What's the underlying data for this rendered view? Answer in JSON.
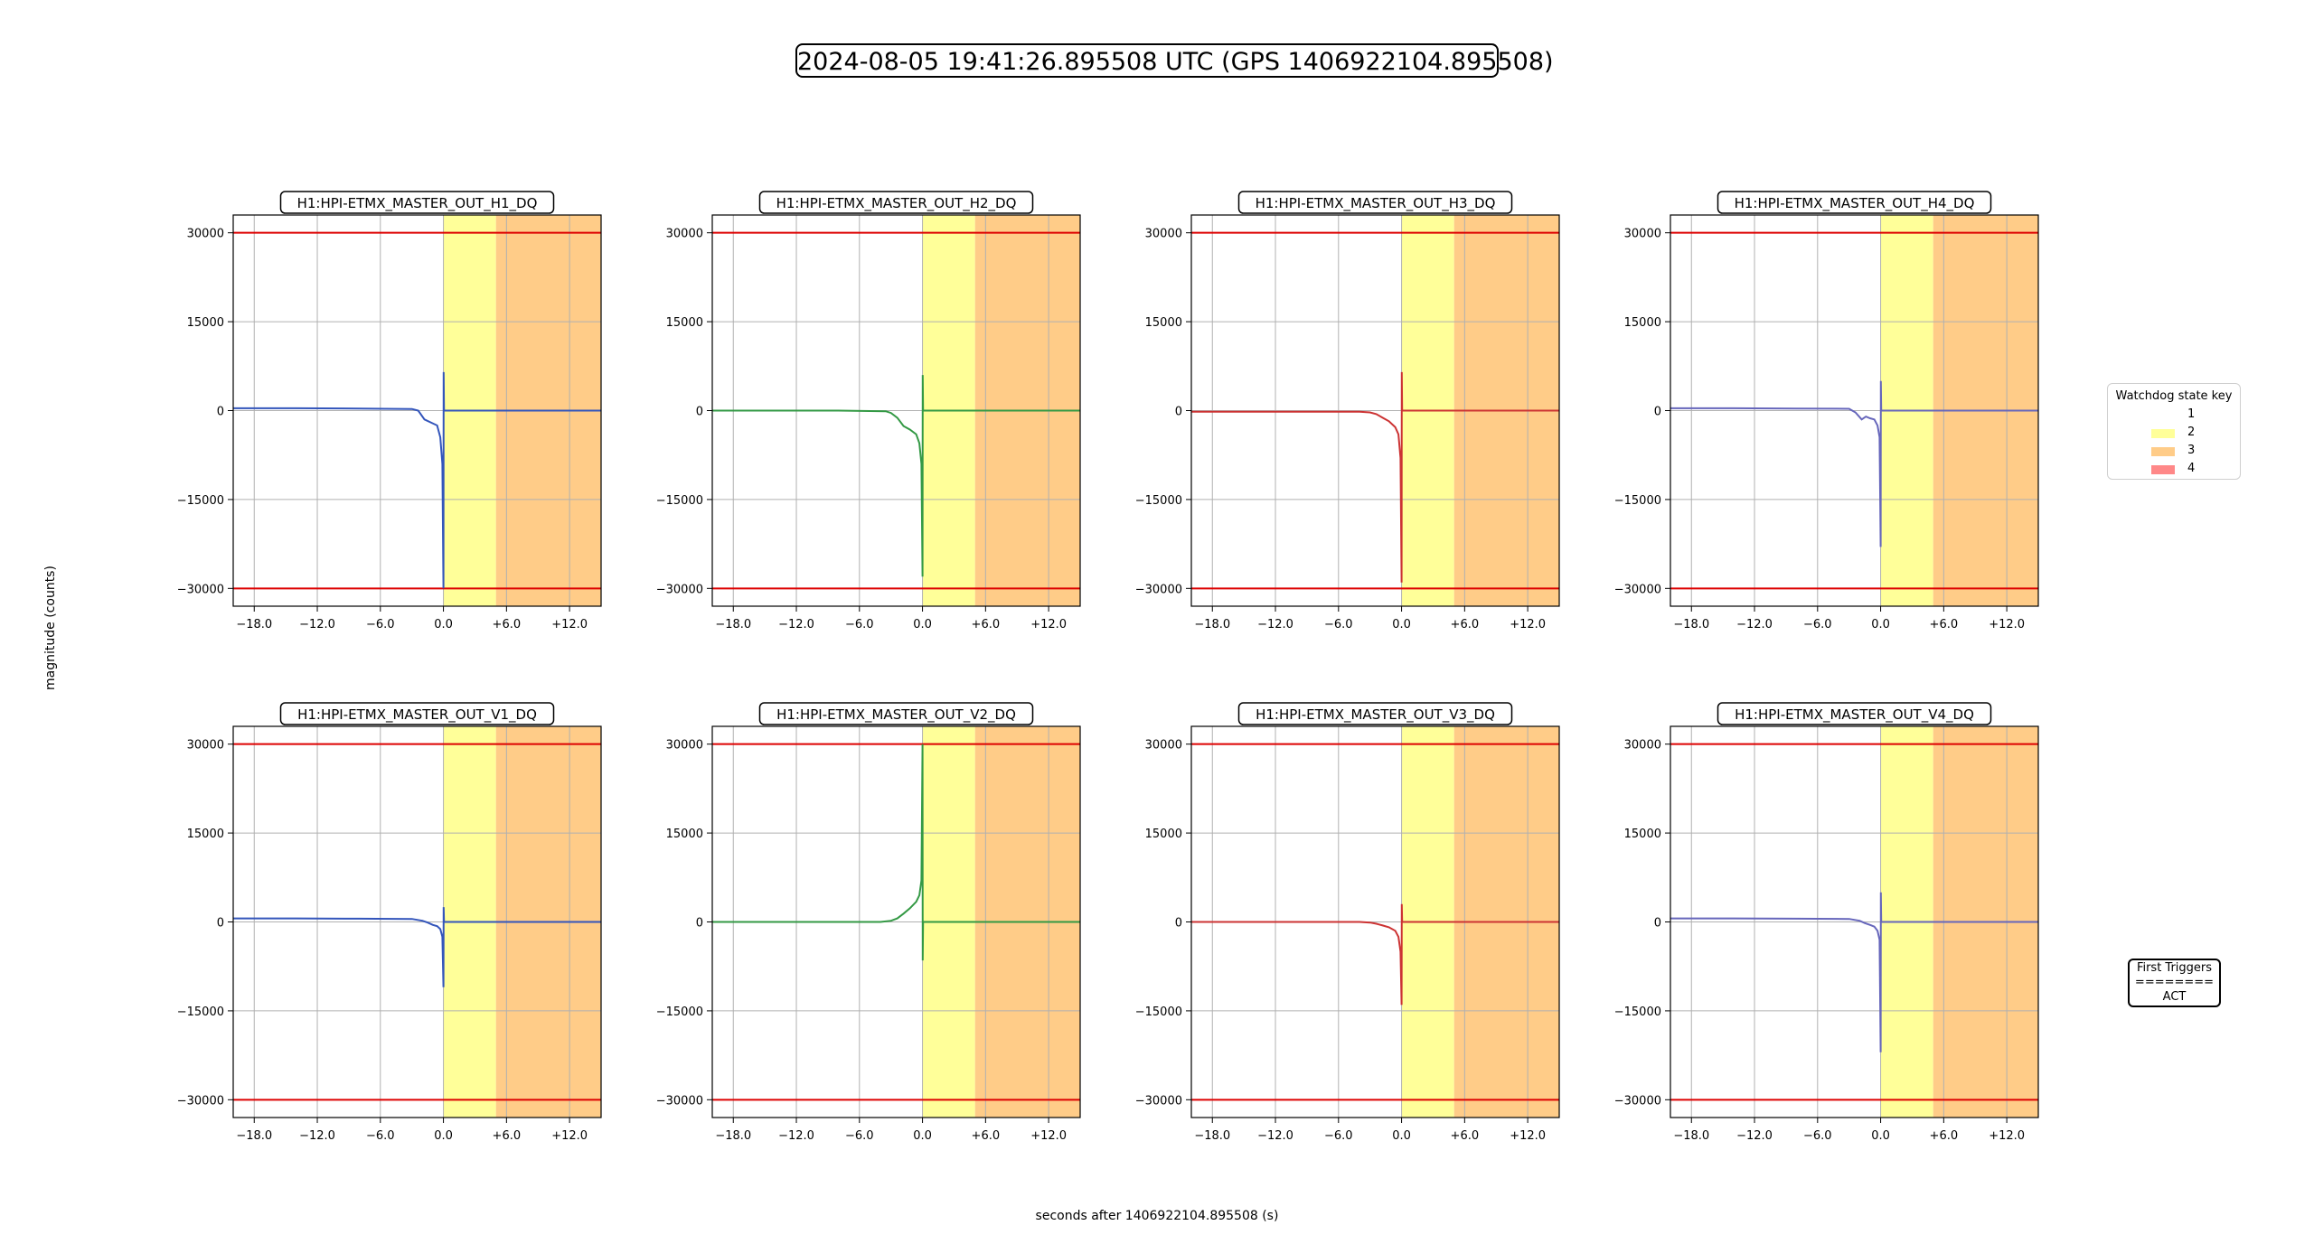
{
  "title": "2024-08-05 19:41:26.895508 UTC (GPS 1406922104.895508)",
  "ylabel": "magnitude (counts)",
  "xlabel": "seconds after 1406922104.895508 (s)",
  "legend": {
    "title": "Watchdog state key",
    "items": [
      {
        "label": "1",
        "color": "#ffffff"
      },
      {
        "label": "2",
        "color": "#ffff99"
      },
      {
        "label": "3",
        "color": "#ffcc88"
      },
      {
        "label": "4",
        "color": "#ff8888"
      }
    ]
  },
  "first_triggers": {
    "title": "First Triggers",
    "separator": "========",
    "value": "ACT"
  },
  "chart_data": [
    {
      "type": "line",
      "title": "H1:HPI-ETMX_MASTER_OUT_H1_DQ",
      "color": "#3355bb",
      "x": [
        -20,
        -14,
        -8,
        -3,
        -2.4,
        -1.8,
        -1.2,
        -0.6,
        -0.3,
        -0.1,
        0,
        0.02,
        0.05,
        0.2,
        5,
        15
      ],
      "y": [
        400,
        400,
        350,
        280,
        0,
        -1500,
        -2000,
        -2500,
        -4500,
        -9000,
        -30000,
        6500,
        0,
        0,
        0,
        0
      ]
    },
    {
      "type": "line",
      "title": "H1:HPI-ETMX_MASTER_OUT_H2_DQ",
      "color": "#339944",
      "x": [
        -20,
        -14,
        -8,
        -3.5,
        -3,
        -2.4,
        -1.8,
        -1.2,
        -0.6,
        -0.3,
        -0.1,
        0,
        0.02,
        0.05,
        0.2,
        5,
        15
      ],
      "y": [
        0,
        0,
        0,
        -100,
        -400,
        -1200,
        -2600,
        -3200,
        -4000,
        -5500,
        -9000,
        -28000,
        6000,
        0,
        0,
        0,
        0
      ]
    },
    {
      "type": "line",
      "title": "H1:HPI-ETMX_MASTER_OUT_H3_DQ",
      "color": "#cc3333",
      "x": [
        -20,
        -14,
        -8,
        -4,
        -3,
        -2.4,
        -1.8,
        -1.2,
        -0.6,
        -0.3,
        -0.1,
        0,
        0.02,
        0.05,
        0.2,
        5,
        15
      ],
      "y": [
        -200,
        -200,
        -200,
        -200,
        -300,
        -600,
        -1200,
        -1800,
        -2800,
        -4000,
        -8000,
        -29000,
        6500,
        0,
        0,
        0,
        0
      ]
    },
    {
      "type": "line",
      "title": "H1:HPI-ETMX_MASTER_OUT_H4_DQ",
      "color": "#6666bb",
      "x": [
        -20,
        -14,
        -8,
        -3,
        -2.4,
        -1.8,
        -1.4,
        -1,
        -0.6,
        -0.3,
        -0.1,
        0,
        0.02,
        0.05,
        0.2,
        5,
        15
      ],
      "y": [
        400,
        400,
        350,
        300,
        -300,
        -1500,
        -1000,
        -1300,
        -1500,
        -2500,
        -4500,
        -23000,
        5000,
        0,
        0,
        0,
        0
      ]
    },
    {
      "type": "line",
      "title": "H1:HPI-ETMX_MASTER_OUT_V1_DQ",
      "color": "#3355bb",
      "x": [
        -20,
        -14,
        -8,
        -3,
        -2,
        -1.5,
        -1,
        -0.6,
        -0.3,
        -0.1,
        0,
        0.02,
        0.05,
        0.2,
        5,
        15
      ],
      "y": [
        600,
        600,
        550,
        500,
        200,
        -100,
        -500,
        -700,
        -1200,
        -2500,
        -11000,
        2500,
        0,
        0,
        0,
        0
      ]
    },
    {
      "type": "line",
      "title": "H1:HPI-ETMX_MASTER_OUT_V2_DQ",
      "color": "#339944",
      "x": [
        -20,
        -14,
        -8,
        -4,
        -3,
        -2.4,
        -1.8,
        -1.2,
        -0.6,
        -0.3,
        -0.1,
        0,
        0.02,
        0.05,
        0.2,
        5,
        15
      ],
      "y": [
        0,
        0,
        0,
        0,
        200,
        600,
        1400,
        2300,
        3400,
        4500,
        7000,
        30000,
        -6500,
        0,
        0,
        0,
        0
      ]
    },
    {
      "type": "line",
      "title": "H1:HPI-ETMX_MASTER_OUT_V3_DQ",
      "color": "#cc3333",
      "x": [
        -20,
        -14,
        -8,
        -4,
        -3,
        -2.4,
        -1.8,
        -1.2,
        -0.6,
        -0.3,
        -0.1,
        0,
        0.02,
        0.05,
        0.2,
        5,
        15
      ],
      "y": [
        0,
        0,
        0,
        0,
        -100,
        -300,
        -600,
        -900,
        -1500,
        -2500,
        -5000,
        -14000,
        3000,
        0,
        0,
        0,
        0
      ]
    },
    {
      "type": "line",
      "title": "H1:HPI-ETMX_MASTER_OUT_V4_DQ",
      "color": "#6666bb",
      "x": [
        -20,
        -14,
        -8,
        -3,
        -2,
        -1.5,
        -1,
        -0.6,
        -0.3,
        -0.1,
        0,
        0.02,
        0.05,
        0.2,
        5,
        15
      ],
      "y": [
        600,
        600,
        550,
        500,
        200,
        -200,
        -500,
        -800,
        -1500,
        -3000,
        -22000,
        5000,
        0,
        0,
        0,
        0
      ]
    }
  ],
  "axes": {
    "xlim": [
      -20,
      15
    ],
    "ylim": [
      -33000,
      33000
    ],
    "xticks": [
      -18,
      -12,
      -6,
      0,
      6,
      12
    ],
    "xtick_labels": [
      "−18.0",
      "−12.0",
      "−6.0",
      "0.0",
      "+6.0",
      "+12.0"
    ],
    "yticks": [
      30000,
      15000,
      0,
      -15000,
      -30000
    ],
    "ytick_labels": [
      "30000",
      "15000",
      "0",
      "−15000",
      "−30000"
    ],
    "threshold_lines": [
      30000,
      -30000
    ],
    "threshold_color": "#dd0000",
    "grid": true,
    "state_regions": [
      {
        "state": "2",
        "from": 0,
        "to": 5
      },
      {
        "state": "3",
        "from": 5,
        "to": 15
      }
    ]
  }
}
